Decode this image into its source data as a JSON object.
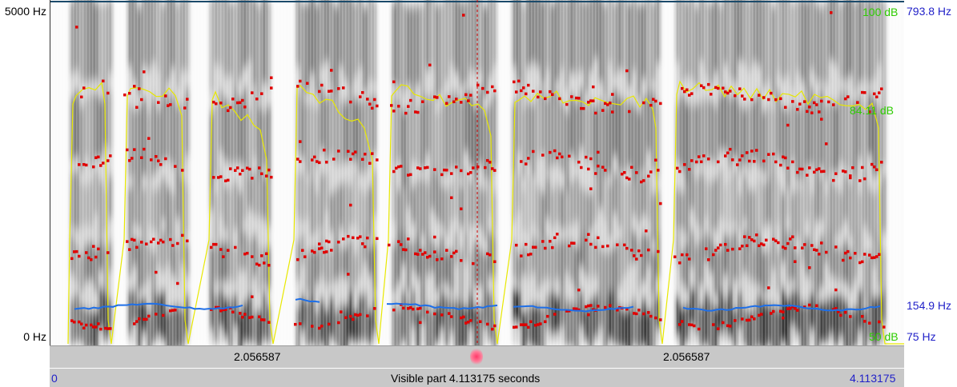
{
  "axes": {
    "left_top": "5000 Hz",
    "left_bottom": "0 Hz",
    "right_top_db": "100 dB",
    "right_top_hz": "793.8 Hz",
    "right_mid_db": "84.11 dB",
    "right_pitch_cursor": "154.9 Hz",
    "right_bottom_db": "50 dB",
    "right_bottom_hz": "75 Hz"
  },
  "time_bar": {
    "left_value": "2.056587",
    "right_value": "2.056587"
  },
  "bottom_bar": {
    "start": "0",
    "caption": "Visible part 4.113175 seconds",
    "end": "4.113175"
  },
  "colors": {
    "formant": "#e00000",
    "pitch": "#1e6fe8",
    "intensity": "#e8e800",
    "cursor": "#d00000",
    "axis_blue": "#1f1fc8",
    "axis_green": "#2ecc00"
  }
}
